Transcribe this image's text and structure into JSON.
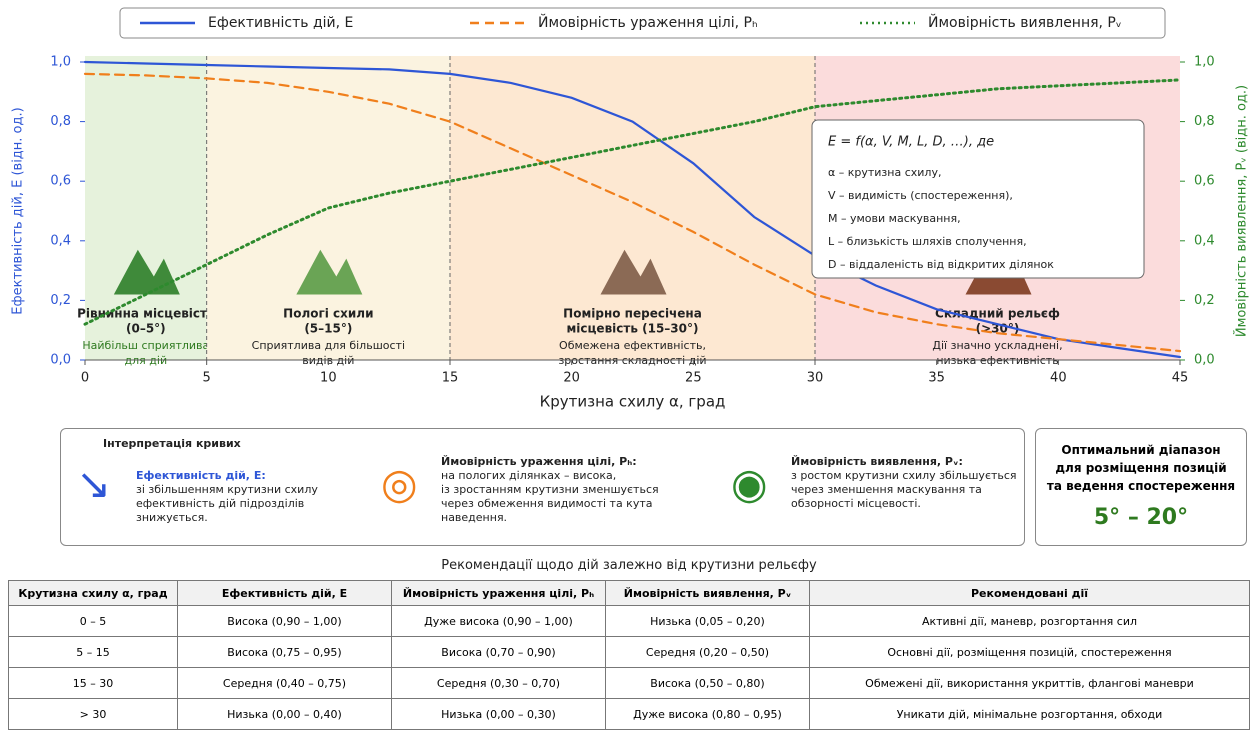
{
  "chart_data": {
    "type": "line",
    "x": [
      0,
      2.5,
      5,
      7.5,
      10,
      12.5,
      15,
      17.5,
      20,
      22.5,
      25,
      27.5,
      30,
      32.5,
      35,
      37.5,
      40,
      42.5,
      45
    ],
    "series": [
      {
        "name": "Ефективність дій, E",
        "color": "#2e56d6",
        "dash": "solid",
        "values": [
          1.0,
          0.995,
          0.99,
          0.985,
          0.98,
          0.975,
          0.96,
          0.93,
          0.88,
          0.8,
          0.66,
          0.48,
          0.35,
          0.25,
          0.17,
          0.12,
          0.07,
          0.04,
          0.01
        ]
      },
      {
        "name": "Ймовірність ураження цілі, Pₕ",
        "color": "#f07f1c",
        "dash": "dashed",
        "values": [
          0.96,
          0.955,
          0.945,
          0.93,
          0.9,
          0.86,
          0.8,
          0.71,
          0.62,
          0.53,
          0.43,
          0.32,
          0.22,
          0.16,
          0.12,
          0.09,
          0.07,
          0.05,
          0.03
        ]
      },
      {
        "name": "Ймовірність виявлення, Pᵥ",
        "color": "#2e8a2e",
        "dash": "dotted",
        "axis": "y2",
        "values": [
          0.12,
          0.22,
          0.32,
          0.42,
          0.51,
          0.56,
          0.6,
          0.64,
          0.68,
          0.72,
          0.76,
          0.8,
          0.85,
          0.87,
          0.89,
          0.91,
          0.92,
          0.93,
          0.94
        ]
      }
    ],
    "xlim": [
      0,
      45
    ],
    "xticks": [
      0,
      5,
      10,
      15,
      20,
      25,
      30,
      35,
      40,
      45
    ],
    "ylim": [
      0,
      1
    ],
    "yticks": [
      {
        "value": 0,
        "label": "0,0"
      },
      {
        "value": 0.2,
        "label": "0,2"
      },
      {
        "value": 0.4,
        "label": "0,4"
      },
      {
        "value": 0.6,
        "label": "0,6"
      },
      {
        "value": 0.8,
        "label": "0,8"
      },
      {
        "value": 1,
        "label": "1,0"
      }
    ],
    "y2lim": [
      0,
      1
    ],
    "y2ticks": [
      {
        "value": 0,
        "label": "0,0"
      },
      {
        "value": 0.2,
        "label": "0,2"
      },
      {
        "value": 0.4,
        "label": "0,4"
      },
      {
        "value": 0.6,
        "label": "0,6"
      },
      {
        "value": 0.8,
        "label": "0,8"
      },
      {
        "value": 1,
        "label": "1,0"
      }
    ],
    "xlabel": "Крутизна схилу α, град",
    "ylabel": "Ефективність дій, E (відн. од.)",
    "y2label": "Ймовірність виявлення, Pᵥ (відн. од.)",
    "zones": [
      {
        "start": 0,
        "end": 5,
        "color": "#e6f2dc",
        "title_lines": [
          "Рівнинна місцевість",
          "(0–5°)"
        ],
        "desc_lines": [
          "Найбільш сприятлива",
          "для дій"
        ],
        "desc_color": "#2e7a1f"
      },
      {
        "start": 5,
        "end": 15,
        "color": "#fbf3e0",
        "title_lines": [
          "Пологі схили",
          "(5–15°)"
        ],
        "desc_lines": [
          "Сприятлива для більшості",
          "видів дій"
        ],
        "desc_color": "#222"
      },
      {
        "start": 15,
        "end": 30,
        "color": "#fde8d2",
        "title_lines": [
          "Помірно пересічена",
          "місцевість (15–30°)"
        ],
        "desc_lines": [
          "Обмежена ефективність,",
          "зростання складності дій"
        ],
        "desc_color": "#222"
      },
      {
        "start": 30,
        "end": 45,
        "color": "#fbdcdc",
        "title_lines": [
          "Складний рельєф",
          "(>30°)"
        ],
        "desc_lines": [
          "Дії значно ускладнені,",
          "низька ефективність"
        ],
        "desc_color": "#222"
      }
    ],
    "annotation": [
      "E = f(α, V, M, L, D, …), де",
      "α – крутизна схилу,",
      "V – видимість (спостереження),",
      "M – умови маскування,",
      "L – близькість шляхів сполучення,",
      "D – віддаленість від відкритих ділянок"
    ]
  },
  "interpretation": {
    "title": "Інтерпретація кривих",
    "items": [
      {
        "title": "Ефективність дій, E:",
        "lines": [
          "зі збільшенням крутизни схилу",
          "ефективність дій підрозділів",
          "знижується."
        ]
      },
      {
        "title": "Ймовірність ураження цілі, Pₕ:",
        "lines": [
          "на пологих ділянках – висока,",
          "із зростанням крутизни зменшується",
          "через обмеження видимості та кута",
          "наведення."
        ]
      },
      {
        "title": "Ймовірність виявлення, Pᵥ:",
        "lines": [
          "з ростом крутизни схилу збільшується",
          "через зменшення маскування та",
          "обзорності місцевості."
        ]
      }
    ]
  },
  "optimal": {
    "lines": [
      "Оптимальний діапазон",
      "для розміщення позицій",
      "та ведення спостереження"
    ],
    "range": "5° – 20°"
  },
  "table": {
    "title": "Рекомендації щодо дій залежно від крутизни рельєфу",
    "header": [
      "Крутизна схилу α, град",
      "Ефективність дій, E",
      "Ймовірність ураження цілі, Pₕ",
      "Ймовірність виявлення, Pᵥ",
      "Рекомендовані дії"
    ],
    "rows": [
      [
        "0 – 5",
        "Висока (0,90 – 1,00)",
        "Дуже висока (0,90 – 1,00)",
        "Низька (0,05 – 0,20)",
        "Активні дії, маневр, розгортання сил"
      ],
      [
        "5 – 15",
        "Висока (0,75 – 0,95)",
        "Висока (0,70 – 0,90)",
        "Середня (0,20 – 0,50)",
        "Основні дії, розміщення позицій, спостереження"
      ],
      [
        "15 – 30",
        "Середня (0,40 – 0,75)",
        "Середня (0,30 – 0,70)",
        "Висока (0,50 – 0,80)",
        "Обмежені дії, використання укриттів, флангові маневри"
      ],
      [
        "> 30",
        "Низька (0,00 – 0,40)",
        "Низька (0,00 – 0,30)",
        "Дуже висока (0,80 – 0,95)",
        "Уникати дій, мінімальне розгортання, обходи"
      ]
    ]
  }
}
